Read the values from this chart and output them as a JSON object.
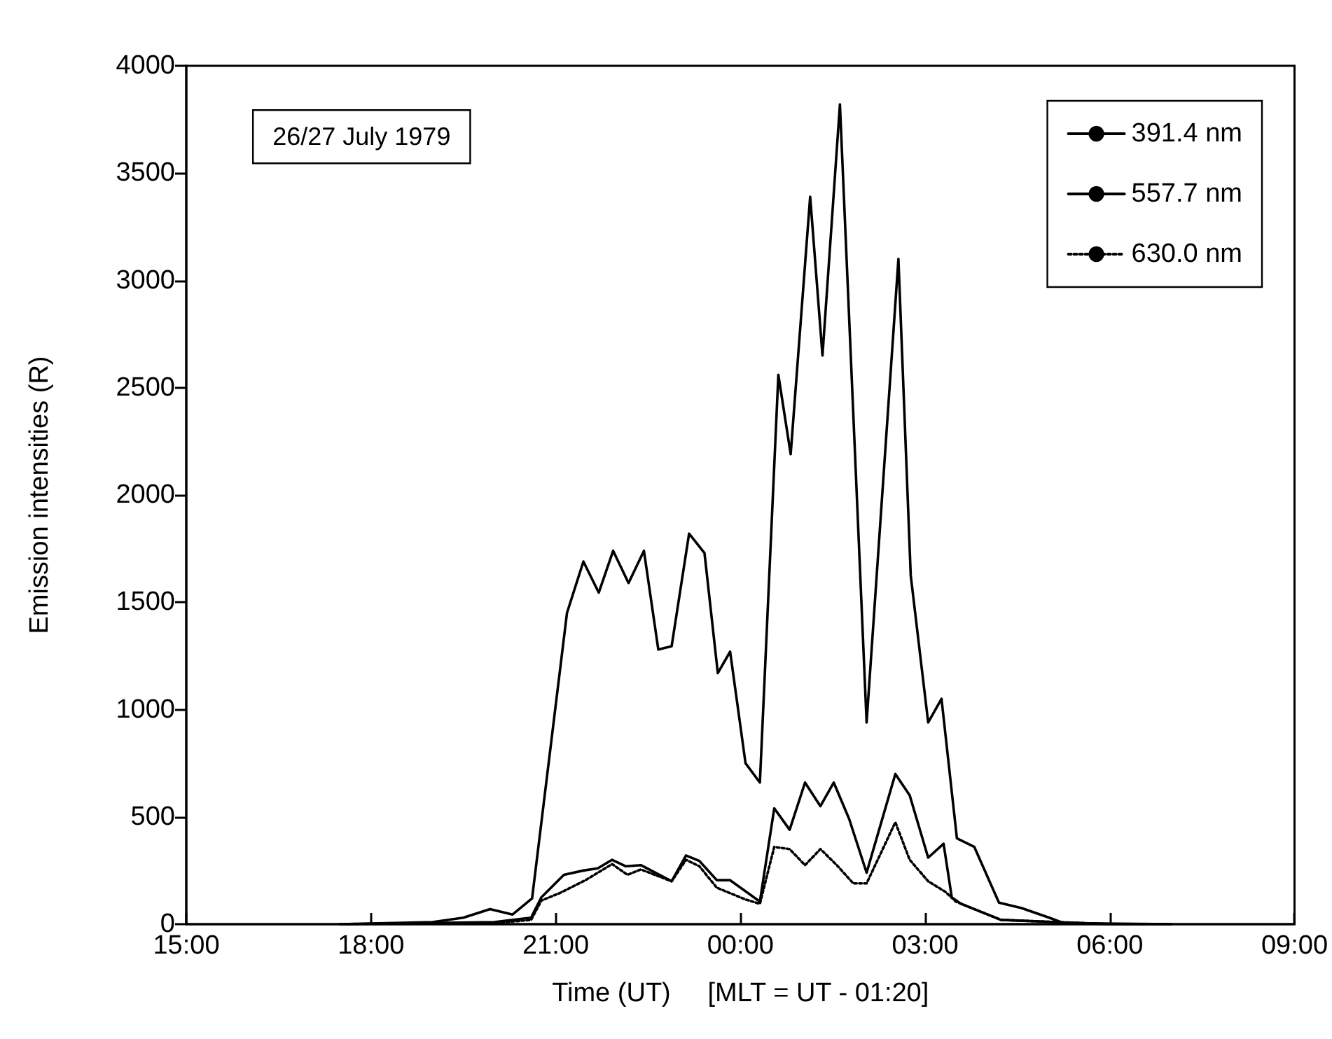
{
  "chart_data": {
    "type": "line",
    "xlabel": "Time (UT)     [MLT = UT - 01:20]",
    "ylabel": "Emission intensities (R)",
    "annotations": [
      "26/27 July 1979"
    ],
    "legend": "top right",
    "grid": false,
    "xlim": [
      "1979-07-26T15:00",
      "1979-07-27T09:00"
    ],
    "xticks": [
      {
        "value": "1979-07-26T15:00",
        "label": "15:00"
      },
      {
        "value": "1979-07-26T18:00",
        "label": "18:00"
      },
      {
        "value": "1979-07-26T21:00",
        "label": "21:00"
      },
      {
        "value": "1979-07-27T00:00",
        "label": "00:00"
      },
      {
        "value": "1979-07-27T03:00",
        "label": "03:00"
      },
      {
        "value": "1979-07-27T06:00",
        "label": "06:00"
      },
      {
        "value": "1979-07-27T09:00",
        "label": "09:00"
      }
    ],
    "ylim": [
      0,
      4000
    ],
    "yticks": [
      0,
      500,
      1000,
      1500,
      2000,
      2500,
      3000,
      3500,
      4000
    ],
    "series": [
      {
        "name": "391.4 nm",
        "color": "#000000",
        "line_style": "solid",
        "x": [
          "1979-07-26T17:30",
          "1979-07-26T19:00",
          "1979-07-26T19:30",
          "1979-07-26T19:56",
          "1979-07-26T20:18",
          "1979-07-26T20:37",
          "1979-07-26T21:11",
          "1979-07-26T21:27",
          "1979-07-26T21:42",
          "1979-07-26T21:56",
          "1979-07-26T22:11",
          "1979-07-26T22:26",
          "1979-07-26T22:40",
          "1979-07-26T22:53",
          "1979-07-26T23:10",
          "1979-07-26T23:25",
          "1979-07-26T23:38",
          "1979-07-26T23:50",
          "1979-07-27T00:05",
          "1979-07-27T00:19",
          "1979-07-27T00:37",
          "1979-07-27T00:49",
          "1979-07-27T01:08",
          "1979-07-27T01:20",
          "1979-07-27T01:37",
          "1979-07-27T02:03",
          "1979-07-27T02:34",
          "1979-07-27T02:46",
          "1979-07-27T03:03",
          "1979-07-27T03:16",
          "1979-07-27T03:31",
          "1979-07-27T03:48",
          "1979-07-27T04:12",
          "1979-07-27T04:34",
          "1979-07-27T05:01",
          "1979-07-27T05:15",
          "1979-07-27T07:00"
        ],
        "values": [
          0,
          10,
          30,
          70,
          45,
          120,
          1450,
          1690,
          1545,
          1740,
          1590,
          1740,
          1280,
          1295,
          1820,
          1730,
          1170,
          1270,
          750,
          660,
          2560,
          2190,
          3390,
          2650,
          3820,
          940,
          3100,
          1625,
          940,
          1050,
          400,
          360,
          100,
          75,
          30,
          5,
          0
        ]
      },
      {
        "name": "557.7 nm",
        "color": "#000000",
        "line_style": "solid",
        "x": [
          "1979-07-26T17:30",
          "1979-07-26T20:00",
          "1979-07-26T20:36",
          "1979-07-26T20:46",
          "1979-07-26T21:08",
          "1979-07-26T21:27",
          "1979-07-26T21:41",
          "1979-07-26T21:55",
          "1979-07-26T22:08",
          "1979-07-26T22:23",
          "1979-07-26T22:53",
          "1979-07-26T23:07",
          "1979-07-26T23:20",
          "1979-07-26T23:37",
          "1979-07-26T23:50",
          "1979-07-27T00:19",
          "1979-07-27T00:33",
          "1979-07-27T00:48",
          "1979-07-27T01:03",
          "1979-07-27T01:18",
          "1979-07-27T01:31",
          "1979-07-27T01:46",
          "1979-07-27T02:03",
          "1979-07-27T02:31",
          "1979-07-27T02:45",
          "1979-07-27T03:03",
          "1979-07-27T03:18",
          "1979-07-27T03:26",
          "1979-07-27T03:35",
          "1979-07-27T04:14",
          "1979-07-27T06:00",
          "1979-07-27T07:00"
        ],
        "values": [
          0,
          10,
          30,
          125,
          230,
          250,
          260,
          300,
          270,
          275,
          200,
          320,
          295,
          205,
          205,
          105,
          540,
          440,
          660,
          550,
          660,
          490,
          240,
          700,
          600,
          310,
          375,
          125,
          95,
          20,
          0,
          0
        ]
      },
      {
        "name": "630.0 nm",
        "color": "#000000",
        "line_style": "dotted",
        "x": [
          "1979-07-26T17:30",
          "1979-07-26T20:00",
          "1979-07-26T20:36",
          "1979-07-26T20:46",
          "1979-07-26T21:04",
          "1979-07-26T21:29",
          "1979-07-26T21:55",
          "1979-07-26T22:10",
          "1979-07-26T22:23",
          "1979-07-26T22:53",
          "1979-07-26T23:07",
          "1979-07-26T23:20",
          "1979-07-26T23:37",
          "1979-07-27T00:05",
          "1979-07-27T00:19",
          "1979-07-27T00:33",
          "1979-07-27T00:48",
          "1979-07-27T01:03",
          "1979-07-27T01:18",
          "1979-07-27T01:34",
          "1979-07-27T01:50",
          "1979-07-27T02:03",
          "1979-07-27T02:31",
          "1979-07-27T02:45",
          "1979-07-27T03:03",
          "1979-07-27T03:20",
          "1979-07-27T03:30",
          "1979-07-27T04:14",
          "1979-07-27T06:00",
          "1979-07-27T07:00"
        ],
        "values": [
          0,
          5,
          20,
          110,
          145,
          205,
          280,
          230,
          255,
          200,
          300,
          270,
          170,
          115,
          95,
          360,
          350,
          275,
          350,
          275,
          190,
          190,
          475,
          300,
          200,
          150,
          105,
          20,
          0,
          0
        ]
      }
    ]
  }
}
